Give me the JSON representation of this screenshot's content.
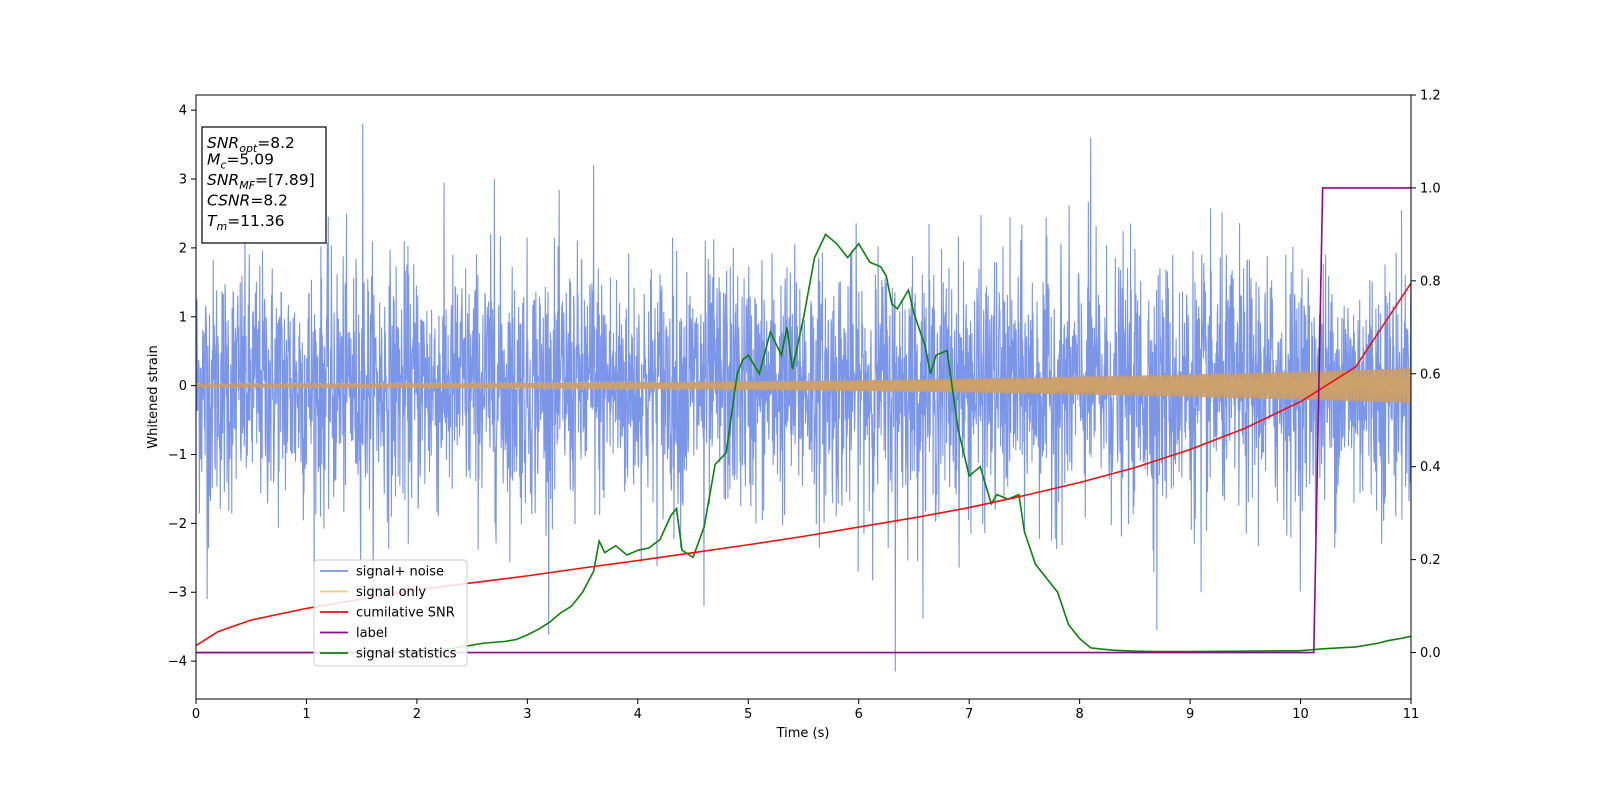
{
  "chart_data": {
    "type": "line",
    "xlabel": "Time (s)",
    "ylabel": "Whitened strain",
    "xlim": [
      0,
      11
    ],
    "ylim": [
      -4.55,
      4.22
    ],
    "y2lim": [
      -0.1,
      1.2
    ],
    "x_ticks": [
      "0",
      "1",
      "2",
      "3",
      "4",
      "5",
      "6",
      "7",
      "8",
      "9",
      "10",
      "11"
    ],
    "y_ticks": [
      "−4",
      "−3",
      "−2",
      "−1",
      "0",
      "1",
      "2",
      "3",
      "4"
    ],
    "y2_ticks": [
      "0.0",
      "0.2",
      "0.4",
      "0.6",
      "0.8",
      "1.0",
      "1.2"
    ],
    "grid": false,
    "legend_position": "lower-left",
    "annotations": [
      {
        "base": "SNR",
        "sub": "opt",
        "value": "=8.2"
      },
      {
        "base": "M",
        "sub": "c",
        "value": "=5.09"
      },
      {
        "base": "SNR",
        "sub": "MF",
        "value": "=[7.89]"
      },
      {
        "base": "CSNR",
        "sub": "",
        "value": "=8.2"
      },
      {
        "base": "T",
        "sub": "m",
        "value": "=11.36"
      }
    ],
    "series": [
      {
        "name": "signal+ noise",
        "axis": "left",
        "color": "#7b95e8",
        "kind": "noise",
        "std": 0.9,
        "spikes": [
          [
            1.51,
            3.8
          ],
          [
            6.33,
            -4.15
          ],
          [
            8.1,
            3.6
          ],
          [
            0.1,
            -3.1
          ],
          [
            4.6,
            -3.2
          ],
          [
            8.7,
            -3.55
          ],
          [
            3.6,
            3.2
          ],
          [
            2.7,
            3.0
          ],
          [
            9.1,
            -3.0
          ]
        ]
      },
      {
        "name": "signal only",
        "axis": "left",
        "color": "#fdc96f",
        "kind": "chirp",
        "amp_start": 0.03,
        "amp_end": 0.25
      },
      {
        "name": "cumilative SNR",
        "axis": "right",
        "color": "#ee1111",
        "x": [
          0,
          0.2,
          0.5,
          1,
          1.5,
          2,
          2.5,
          3,
          3.5,
          4,
          4.5,
          5,
          5.5,
          6,
          6.5,
          7,
          7.5,
          8,
          8.5,
          9,
          9.5,
          10,
          10.5,
          11
        ],
        "y": [
          0.015,
          0.045,
          0.07,
          0.095,
          0.115,
          0.135,
          0.15,
          0.165,
          0.182,
          0.198,
          0.215,
          0.232,
          0.25,
          0.27,
          0.29,
          0.312,
          0.338,
          0.366,
          0.398,
          0.437,
          0.483,
          0.54,
          0.615,
          0.795
        ]
      },
      {
        "name": "label",
        "axis": "right",
        "color": "#8b0a8b",
        "x": [
          0,
          10.12,
          10.2,
          11
        ],
        "y": [
          0,
          0,
          1,
          1
        ]
      },
      {
        "name": "signal statistics",
        "axis": "right",
        "color": "#0d800d",
        "x": [
          0,
          0.5,
          1,
          1.5,
          2,
          2.3,
          2.6,
          2.8,
          2.9,
          3.0,
          3.1,
          3.2,
          3.3,
          3.4,
          3.5,
          3.6,
          3.65,
          3.7,
          3.8,
          3.9,
          4.0,
          4.1,
          4.2,
          4.3,
          4.35,
          4.4,
          4.5,
          4.6,
          4.7,
          4.8,
          4.9,
          4.95,
          5.0,
          5.1,
          5.2,
          5.3,
          5.35,
          5.4,
          5.5,
          5.6,
          5.7,
          5.8,
          5.9,
          6.0,
          6.1,
          6.2,
          6.25,
          6.3,
          6.35,
          6.45,
          6.5,
          6.6,
          6.65,
          6.7,
          6.8,
          6.9,
          7.0,
          7.1,
          7.2,
          7.25,
          7.35,
          7.45,
          7.5,
          7.6,
          7.7,
          7.8,
          7.9,
          8.0,
          8.1,
          8.3,
          8.5,
          8.7,
          9.0,
          9.5,
          10.0,
          10.1,
          10.2,
          10.5,
          10.7,
          10.8,
          10.9,
          11.0
        ],
        "y": [
          0.0,
          0.0,
          0.0,
          0.0,
          0.003,
          0.008,
          0.02,
          0.024,
          0.028,
          0.038,
          0.05,
          0.065,
          0.085,
          0.1,
          0.13,
          0.175,
          0.24,
          0.215,
          0.23,
          0.21,
          0.22,
          0.225,
          0.243,
          0.295,
          0.31,
          0.22,
          0.205,
          0.27,
          0.405,
          0.43,
          0.6,
          0.63,
          0.64,
          0.6,
          0.69,
          0.64,
          0.7,
          0.61,
          0.72,
          0.85,
          0.9,
          0.88,
          0.85,
          0.88,
          0.84,
          0.83,
          0.81,
          0.75,
          0.74,
          0.78,
          0.73,
          0.66,
          0.6,
          0.64,
          0.65,
          0.48,
          0.38,
          0.4,
          0.32,
          0.34,
          0.33,
          0.34,
          0.26,
          0.19,
          0.16,
          0.13,
          0.06,
          0.03,
          0.01,
          0.005,
          0.003,
          0.002,
          0.002,
          0.003,
          0.004,
          0.006,
          0.008,
          0.012,
          0.02,
          0.026,
          0.03,
          0.035
        ]
      }
    ]
  }
}
